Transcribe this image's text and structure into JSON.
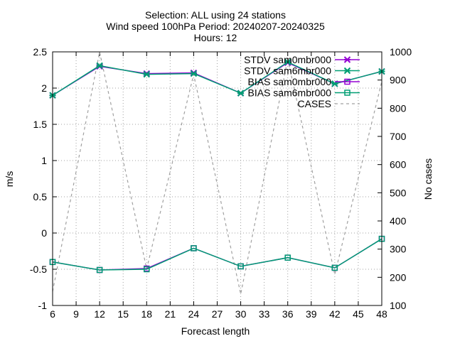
{
  "chart_data": {
    "type": "line",
    "title_lines": [
      "Selection: ALL using    24 stations",
      "Wind speed 100hPa   Period: 20240207-20240325",
      "Hours: 12"
    ],
    "xlabel": "Forecast length",
    "ylabel": "m/s",
    "y2label": "No cases",
    "x_ticks": [
      6,
      9,
      12,
      15,
      18,
      21,
      24,
      27,
      30,
      33,
      36,
      39,
      42,
      45,
      48
    ],
    "xlim": [
      6,
      48
    ],
    "ylim": [
      -1,
      2.5
    ],
    "y_ticks": [
      -1,
      -0.5,
      0,
      0.5,
      1,
      1.5,
      2,
      2.5
    ],
    "y2lim": [
      100,
      1000
    ],
    "y2_ticks": [
      100,
      200,
      300,
      400,
      500,
      600,
      700,
      800,
      900,
      1000
    ],
    "grid": true,
    "legend_position": "top-right",
    "x": [
      6,
      12,
      18,
      24,
      30,
      36,
      42,
      48
    ],
    "series": [
      {
        "name": "STDV sam0mbr000",
        "color": "#9400d3",
        "marker": "x",
        "axis": "y",
        "values": [
          1.9,
          2.3,
          2.2,
          2.21,
          1.93,
          2.35,
          2.06,
          2.23
        ]
      },
      {
        "name": "STDV sam6mbr000",
        "color": "#009e73",
        "marker": "x",
        "axis": "y",
        "values": [
          1.9,
          2.31,
          2.19,
          2.2,
          1.93,
          2.36,
          2.06,
          2.23
        ]
      },
      {
        "name": "BIAS sam0mbr000",
        "color": "#9400d3",
        "marker": "square",
        "axis": "y",
        "values": [
          -0.4,
          -0.51,
          -0.49,
          -0.21,
          -0.46,
          -0.34,
          -0.48,
          -0.08
        ]
      },
      {
        "name": "BIAS sam6mbr000",
        "color": "#009e73",
        "marker": "square",
        "axis": "y",
        "values": [
          -0.4,
          -0.51,
          -0.5,
          -0.21,
          -0.46,
          -0.34,
          -0.48,
          -0.08
        ]
      },
      {
        "name": "CASES",
        "color": "#a0a0a0",
        "marker": "none",
        "dashed": true,
        "axis": "y2",
        "values": [
          150,
          1000,
          230,
          920,
          140,
          975,
          210,
          895
        ]
      }
    ]
  }
}
